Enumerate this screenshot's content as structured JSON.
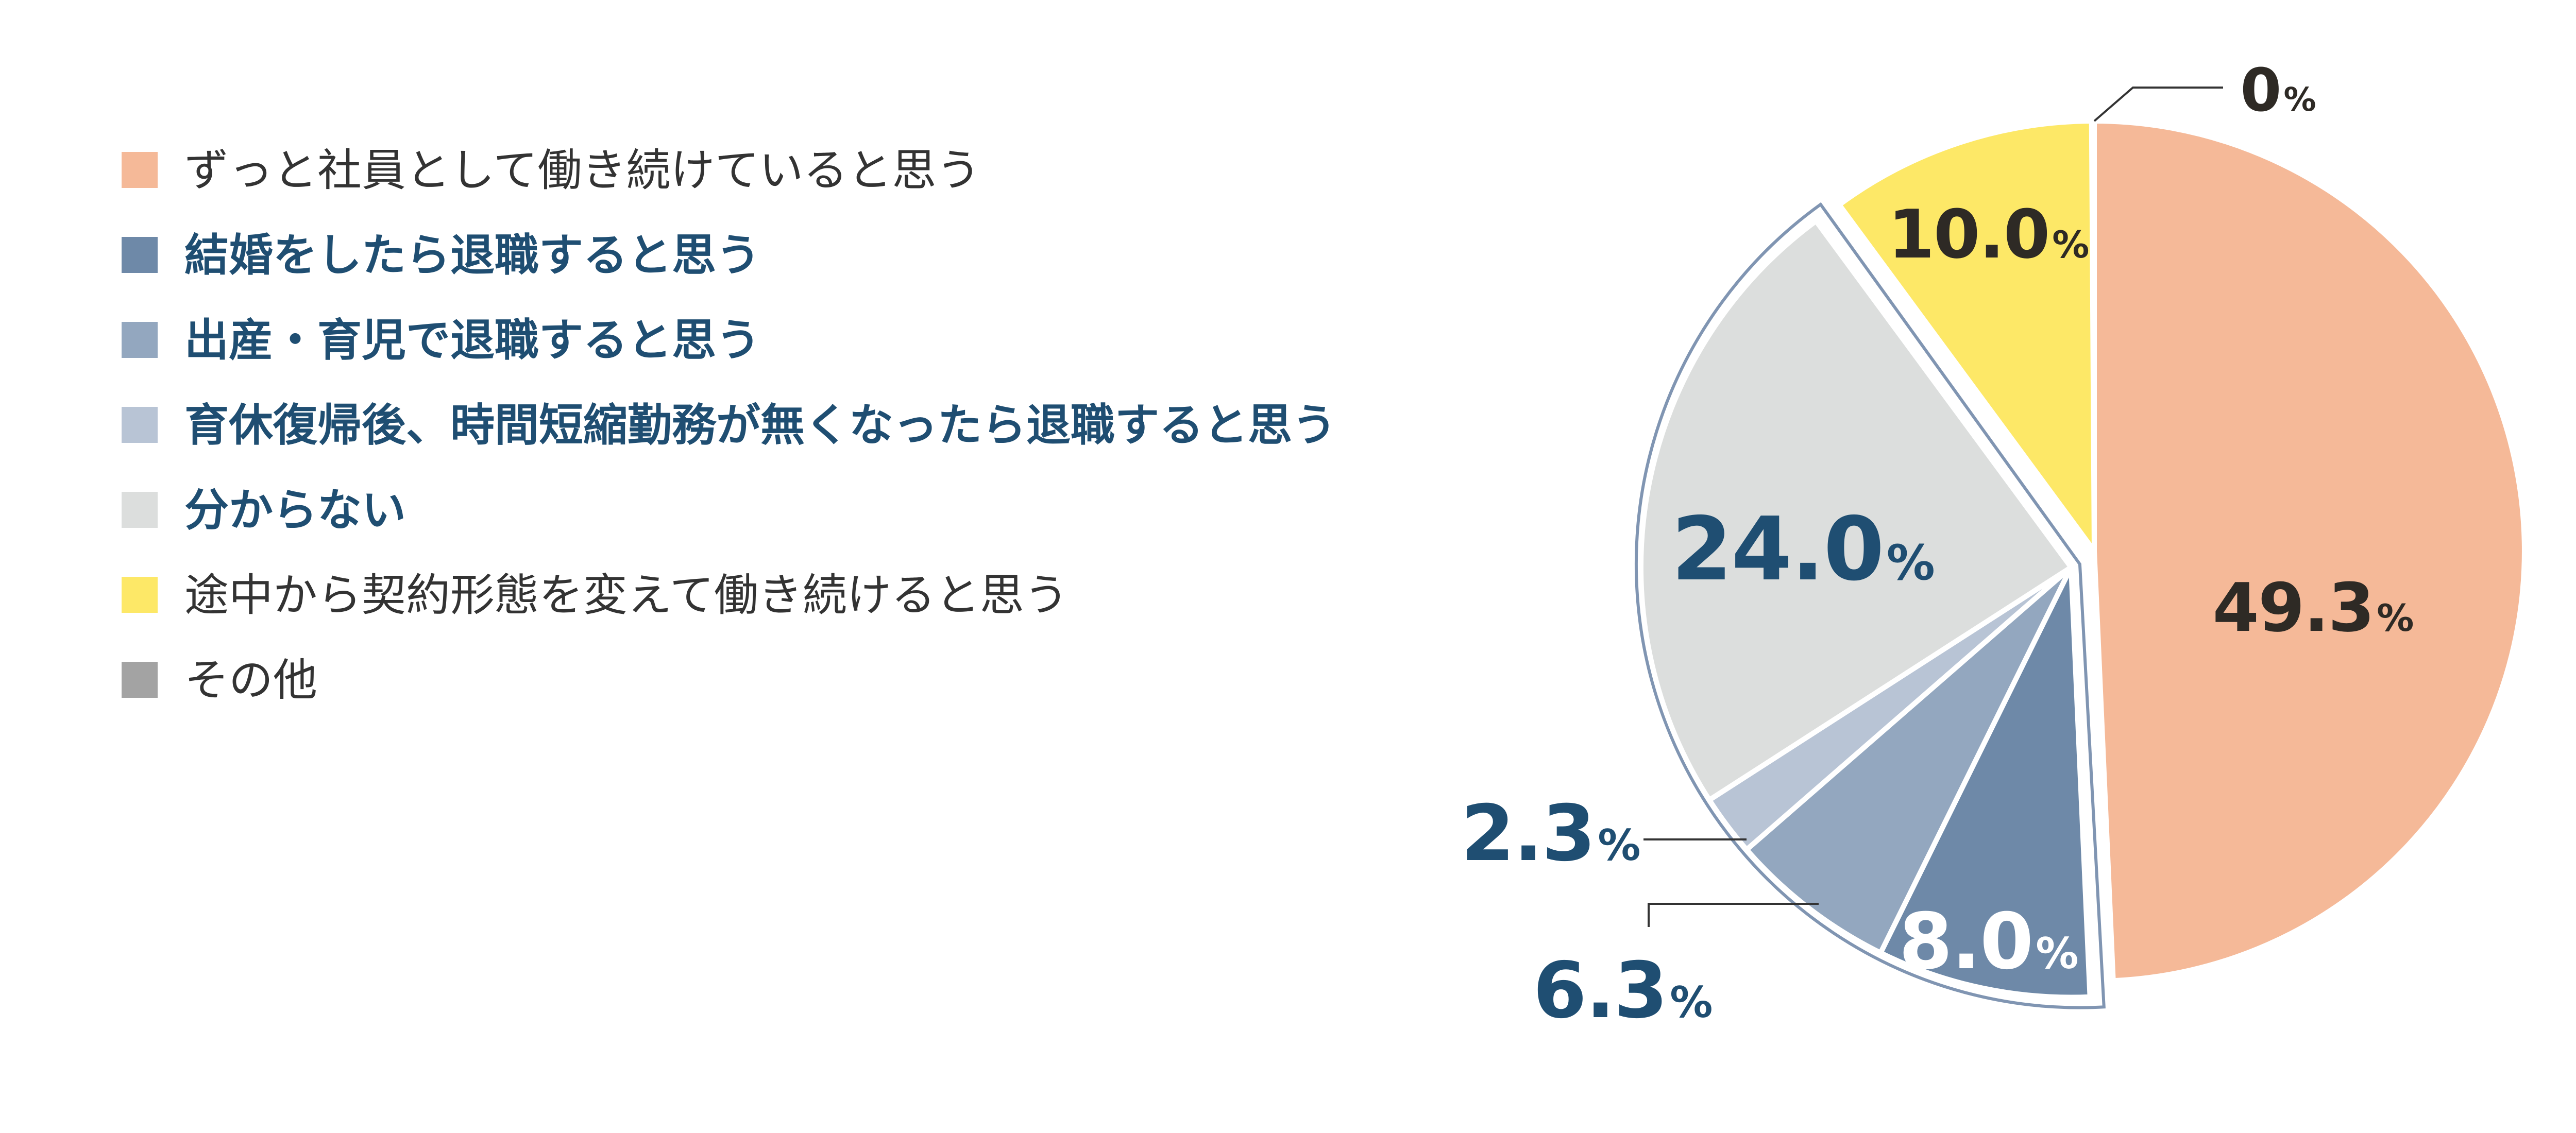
{
  "chart_data": {
    "type": "pie",
    "start_angle_deg": 0,
    "direction": "clockwise",
    "slices": [
      {
        "label": "ずっと社員として働き続けていると思う",
        "value": 49.3,
        "color": "#F5B998",
        "label_color": "#2E2A25",
        "text_weight": "normal",
        "exploded": false,
        "display": "49.3",
        "unit": "%"
      },
      {
        "label": "結婚をしたら退職すると思う",
        "value": 8.0,
        "color": "#6E89A8",
        "label_color": "#FFFFFF",
        "text_weight": "bold",
        "exploded": true,
        "display": "8.0",
        "unit": "%"
      },
      {
        "label": "出産・育児で退職すると思う",
        "value": 6.3,
        "color": "#93A7BF",
        "label_color": "#1F4E72",
        "text_weight": "bold",
        "exploded": true,
        "display": "6.3",
        "unit": "%"
      },
      {
        "label": "育休復帰後、時間短縮勤務が無くなったら退職すると思う",
        "value": 2.3,
        "color": "#B8C4D5",
        "label_color": "#1F4E72",
        "text_weight": "bold",
        "exploded": true,
        "display": "2.3",
        "unit": "%"
      },
      {
        "label": "分からない",
        "value": 24.0,
        "color": "#DCDEDD",
        "label_color": "#1F4E72",
        "text_weight": "bold",
        "exploded": true,
        "display": "24.0",
        "unit": "%"
      },
      {
        "label": "途中から契約形態を変えて働き続けると思う",
        "value": 10.0,
        "color": "#FDE867",
        "label_color": "#2E2A25",
        "text_weight": "normal",
        "exploded": false,
        "display": "10.0",
        "unit": "%"
      },
      {
        "label": "その他",
        "value": 0,
        "color": "#A3A3A3",
        "label_color": "#2E2A25",
        "text_weight": "normal",
        "exploded": false,
        "display": "0",
        "unit": "%"
      }
    ],
    "legend_position": "left",
    "legend_text_colors": {
      "normal": "#333333",
      "bold": "#1F4E72"
    },
    "outline_color": "#8095B2"
  }
}
